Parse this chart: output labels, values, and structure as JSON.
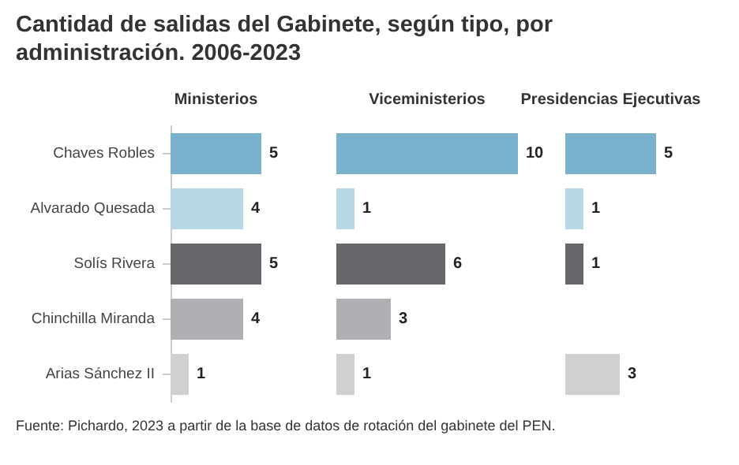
{
  "chart_data": [
    {
      "type": "bar",
      "orientation": "horizontal",
      "title": "Cantidad de salidas del Gabinete, según tipo, por administración. 2006-2023",
      "subtitle": "Ministerios",
      "categories": [
        "Chaves Robles",
        "Alvarado Quesada",
        "Solís Rivera",
        "Chinchilla Miranda",
        "Arias Sánchez II"
      ],
      "values": [
        5,
        4,
        5,
        4,
        1
      ],
      "colors": [
        "#7ab1cc",
        "#b7d6e6",
        "#67686c",
        "#afb0b3",
        "#cfd0d2"
      ],
      "data_labels": true,
      "tick_labels": "y",
      "annotations": [
        "Fuente: Pichardo, 2023 a partir de la base de datos de rotación del gabinete del PEN."
      ]
    },
    {
      "type": "bar",
      "orientation": "horizontal",
      "subtitle": "Viceministerios",
      "categories": [
        null,
        null,
        null,
        null,
        null
      ],
      "values": [
        10,
        1,
        6,
        3,
        1
      ],
      "colors": [
        "#7ab1cc",
        "#b7d6e6",
        "#67686c",
        "#afb0b3",
        "#cfd0d2"
      ],
      "data_labels": true,
      "tick_labels": false
    },
    {
      "type": "bar",
      "orientation": "horizontal",
      "subtitle": "Presidencias Ejecutivas",
      "categories": [
        null,
        null,
        null,
        null,
        null
      ],
      "values": [
        5,
        1,
        1,
        null,
        3
      ],
      "colors": [
        "#7ab1cc",
        "#b7d6e6",
        "#67686c",
        "#afb0b3",
        "#cfd0d2"
      ],
      "data_labels": true,
      "tick_labels": false
    }
  ]
}
